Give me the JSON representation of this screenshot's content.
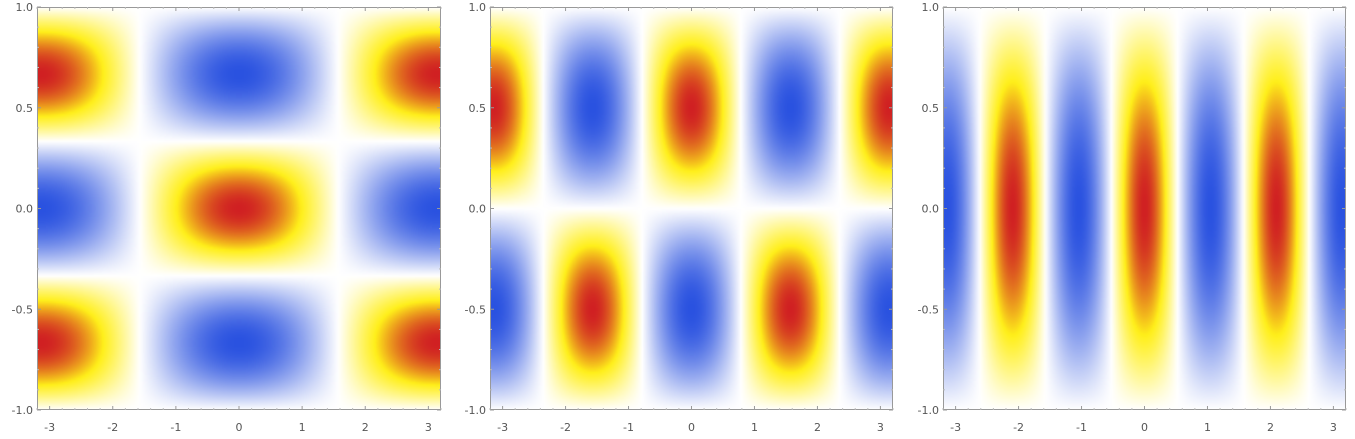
{
  "chart_data": [
    {
      "type": "heatmap",
      "title": "",
      "xlabel": "",
      "ylabel": "",
      "xlim": [
        -3.2,
        3.2
      ],
      "ylim": [
        -1.0,
        1.0
      ],
      "x_ticks": [
        -3,
        -2,
        -1,
        0,
        1,
        2,
        3
      ],
      "x_tick_labels": [
        "-3",
        "-2",
        "-1",
        "0",
        "1",
        "2",
        "3"
      ],
      "y_ticks": [
        -1.0,
        -0.5,
        0.0,
        0.5,
        1.0
      ],
      "y_tick_labels": [
        "-1.0",
        "-0.5",
        "0.0",
        "0.5",
        "1.0"
      ],
      "function": "cos(x) * cos(3*pi*y/2)",
      "value_range": [
        -1,
        1
      ],
      "colormap": [
        "#2a52e0",
        "#ffffff",
        "#ffef1a",
        "#d02022"
      ],
      "grid": false,
      "legend": "none"
    },
    {
      "type": "heatmap",
      "title": "",
      "xlabel": "",
      "ylabel": "",
      "xlim": [
        -3.2,
        3.2
      ],
      "ylim": [
        -1.0,
        1.0
      ],
      "x_ticks": [
        -3,
        -2,
        -1,
        0,
        1,
        2,
        3
      ],
      "x_tick_labels": [
        "-3",
        "-2",
        "-1",
        "0",
        "1",
        "2",
        "3"
      ],
      "y_ticks": [
        -1.0,
        -0.5,
        0.0,
        0.5,
        1.0
      ],
      "y_tick_labels": [
        "-1.0",
        "-0.5",
        "0.0",
        "0.5",
        "1.0"
      ],
      "function": "cos(2*x) * sin(pi*y)",
      "value_range": [
        -1,
        1
      ],
      "colormap": [
        "#2a52e0",
        "#ffffff",
        "#ffef1a",
        "#d02022"
      ],
      "grid": false,
      "legend": "none"
    },
    {
      "type": "heatmap",
      "title": "",
      "xlabel": "",
      "ylabel": "",
      "xlim": [
        -3.2,
        3.2
      ],
      "ylim": [
        -1.0,
        1.0
      ],
      "x_ticks": [
        -3,
        -2,
        -1,
        0,
        1,
        2,
        3
      ],
      "x_tick_labels": [
        "-3",
        "-2",
        "-1",
        "0",
        "1",
        "2",
        "3"
      ],
      "y_ticks": [
        -1.0,
        -0.5,
        0.0,
        0.5,
        1.0
      ],
      "y_tick_labels": [
        "-1.0",
        "-0.5",
        "0.0",
        "0.5",
        "1.0"
      ],
      "function": "cos(3*x) * cos(pi*y/2)",
      "value_range": [
        -1,
        1
      ],
      "colormap": [
        "#2a52e0",
        "#ffffff",
        "#ffef1a",
        "#d02022"
      ],
      "grid": false,
      "legend": "none"
    }
  ]
}
